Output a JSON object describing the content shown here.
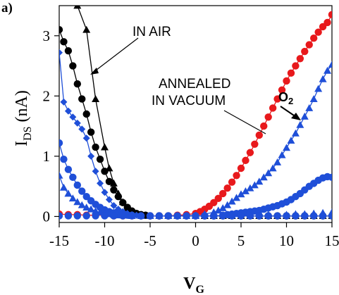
{
  "chart_data": {
    "type": "scatter",
    "panel_label": "a)",
    "xlabel": "V",
    "xlabel_sub": "G",
    "ylabel": "I",
    "ylabel_sub": "DS",
    "ylabel_unit": "(nA)",
    "xlim": [
      -15,
      15
    ],
    "ylim": [
      -0.1,
      3.5
    ],
    "xticks": [
      -15,
      -10,
      -5,
      0,
      5,
      10,
      15
    ],
    "yticks": [
      0,
      1,
      2,
      3
    ],
    "xtick_labels": [
      "-15",
      "-10",
      "-5",
      "0",
      "5",
      "10",
      "15"
    ],
    "ytick_labels": [
      "0",
      "1",
      "2",
      "3"
    ],
    "colors": {
      "air": "#000000",
      "vacuum": "#e8191c",
      "oxygen": "#1f4fd8"
    },
    "annotations": {
      "in_air": "IN AIR",
      "annealed_line1": "ANNEALED",
      "annealed_line2": "IN VACUUM",
      "o2": "O",
      "o2_sub": "2"
    },
    "series": [
      {
        "color": "black",
        "marker": "triangle",
        "line": true,
        "x": [
          -15,
          -14,
          -13,
          -12,
          -11,
          -10,
          -9.5,
          -9,
          -8.5,
          -8,
          -7.5,
          -7,
          -6.5,
          -6,
          -5.5,
          -5,
          -4,
          -3,
          -2,
          -1,
          0,
          1,
          2,
          3,
          4,
          5,
          6,
          7,
          8,
          9,
          10,
          11,
          12,
          13,
          14,
          15
        ],
        "y": [
          3.9,
          3.7,
          3.5,
          3.1,
          1.95,
          1.15,
          0.8,
          0.55,
          0.38,
          0.24,
          0.14,
          0.08,
          0.05,
          0.03,
          0.02,
          0.01,
          0.01,
          0.01,
          0.01,
          0.01,
          0.01,
          0.01,
          0.01,
          0.01,
          0.01,
          0.01,
          0.01,
          0.01,
          0.01,
          0.01,
          0.01,
          0.01,
          0.01,
          0.01,
          0.01,
          0.01
        ]
      },
      {
        "color": "black",
        "marker": "circle",
        "line": true,
        "x": [
          -15,
          -14.5,
          -14,
          -13.5,
          -13,
          -12.5,
          -12,
          -11.5,
          -11,
          -10.5,
          -10,
          -9.5,
          -9,
          -8.5,
          -8,
          -7.5,
          -7,
          -6.5,
          -6,
          -5.5,
          -5,
          -4,
          -3,
          -2,
          -1,
          0,
          1,
          2,
          3,
          4,
          5,
          6,
          7,
          8,
          9,
          10,
          11,
          12,
          13,
          14,
          15
        ],
        "y": [
          3.1,
          2.9,
          2.75,
          2.5,
          2.2,
          1.95,
          1.7,
          1.4,
          1.15,
          0.95,
          0.75,
          0.58,
          0.44,
          0.33,
          0.23,
          0.15,
          0.09,
          0.05,
          0.03,
          0.02,
          0.01,
          0.01,
          0.01,
          0.01,
          0.01,
          0.01,
          0.01,
          0.01,
          0.01,
          0.01,
          0.01,
          0.01,
          0.01,
          0.01,
          0.01,
          0.01,
          0.01,
          0.01,
          0.01,
          0.01,
          0.01
        ]
      },
      {
        "color": "red",
        "marker": "circle",
        "line": true,
        "x": [
          -15,
          -14,
          -13,
          -12,
          -11,
          -10,
          -9,
          -8,
          -7,
          -6,
          -5,
          -4,
          -3,
          -2,
          -1,
          0,
          0.5,
          1,
          1.5,
          2,
          2.5,
          3,
          3.5,
          4,
          4.5,
          5,
          5.5,
          6,
          6.5,
          7,
          7.5,
          8,
          8.5,
          9,
          9.5,
          10,
          10.5,
          11,
          11.5,
          12,
          12.5,
          13,
          13.5,
          14,
          14.5,
          15
        ],
        "y": [
          0.04,
          0.03,
          0.03,
          0.02,
          0.02,
          0.02,
          0.01,
          0.01,
          0.01,
          0.01,
          0.01,
          0.01,
          0.01,
          0.02,
          0.03,
          0.05,
          0.08,
          0.12,
          0.17,
          0.23,
          0.3,
          0.38,
          0.47,
          0.57,
          0.68,
          0.8,
          0.93,
          1.06,
          1.2,
          1.35,
          1.5,
          1.65,
          1.8,
          1.95,
          2.1,
          2.25,
          2.38,
          2.5,
          2.62,
          2.74,
          2.85,
          2.96,
          3.06,
          3.15,
          3.22,
          3.35
        ]
      },
      {
        "color": "blue",
        "marker": "diamond",
        "line": true,
        "x": [
          -15,
          -14.5,
          -14,
          -13.5,
          -13,
          -12.5,
          -12,
          -11.5,
          -11,
          -10.5,
          -10,
          -9.5,
          -9,
          -8.5,
          -8,
          -7.5,
          -7,
          -6.5,
          -6,
          -5,
          -4,
          -3,
          -2,
          -1,
          0,
          1,
          2,
          3,
          4,
          5,
          6,
          7,
          8,
          9,
          10,
          11,
          12,
          13,
          14,
          15
        ],
        "y": [
          2.72,
          1.9,
          1.75,
          1.65,
          1.55,
          1.45,
          1.3,
          1.0,
          0.75,
          0.55,
          0.4,
          0.28,
          0.18,
          0.12,
          0.08,
          0.05,
          0.03,
          0.02,
          0.02,
          0.01,
          0.01,
          0.01,
          0.01,
          0.01,
          0.01,
          0.01,
          0.01,
          0.01,
          0.01,
          0.01,
          0.01,
          0.01,
          0.01,
          0.01,
          0.01,
          0.01,
          0.01,
          0.01,
          0.01,
          0.01
        ]
      },
      {
        "color": "blue",
        "marker": "circle",
        "line": true,
        "x": [
          -15,
          -14.5,
          -14,
          -13.5,
          -13,
          -12.5,
          -12,
          -11.5,
          -11,
          -10.5,
          -10,
          -9.5,
          -9,
          -8.5,
          -8,
          -7.5,
          -7,
          -6,
          -5,
          -4,
          -3,
          -2,
          -1,
          0,
          1,
          2,
          3,
          3.5,
          4,
          4.5,
          5,
          5.5,
          6,
          6.5,
          7,
          7.5,
          8,
          8.5,
          9,
          9.5,
          10,
          10.5,
          11,
          11.5,
          12,
          12.5,
          13,
          13.5,
          14,
          14.5,
          15
        ],
        "y": [
          1.22,
          0.95,
          0.78,
          0.65,
          0.52,
          0.42,
          0.33,
          0.26,
          0.2,
          0.15,
          0.11,
          0.08,
          0.06,
          0.04,
          0.03,
          0.02,
          0.02,
          0.01,
          0.01,
          0.01,
          0.01,
          0.01,
          0.01,
          0.01,
          0.01,
          0.01,
          0.02,
          0.03,
          0.04,
          0.05,
          0.06,
          0.07,
          0.08,
          0.09,
          0.1,
          0.12,
          0.14,
          0.16,
          0.18,
          0.21,
          0.24,
          0.28,
          0.33,
          0.38,
          0.44,
          0.5,
          0.55,
          0.6,
          0.64,
          0.66,
          0.65
        ]
      },
      {
        "color": "blue",
        "marker": "triangle",
        "line": true,
        "x": [
          -15,
          -14.5,
          -14,
          -13.5,
          -13,
          -12.5,
          -12,
          -11.5,
          -11,
          -10.5,
          -10,
          -9.5,
          -9,
          -8.5,
          -8,
          -7,
          -6,
          -5,
          -4,
          -3,
          -2,
          -1,
          0,
          1,
          2,
          2.5,
          3,
          3.5,
          4,
          4.5,
          5,
          5.5,
          6,
          6.5,
          7,
          7.5,
          8,
          8.5,
          9,
          9.5,
          10,
          10.5,
          11,
          11.5,
          12,
          12.5,
          13,
          13.5,
          14,
          14.5,
          15
        ],
        "y": [
          0.68,
          0.48,
          0.38,
          0.3,
          0.24,
          0.19,
          0.15,
          0.12,
          0.09,
          0.07,
          0.05,
          0.04,
          0.03,
          0.02,
          0.02,
          0.01,
          0.01,
          0.01,
          0.01,
          0.01,
          0.01,
          0.01,
          0.02,
          0.04,
          0.07,
          0.1,
          0.14,
          0.19,
          0.25,
          0.31,
          0.37,
          0.42,
          0.47,
          0.52,
          0.58,
          0.65,
          0.72,
          0.8,
          0.9,
          1.02,
          1.14,
          1.26,
          1.38,
          1.52,
          1.66,
          1.8,
          1.95,
          2.12,
          2.28,
          2.42,
          2.52
        ]
      },
      {
        "color": "blue",
        "marker": "circle",
        "line": false,
        "x": [
          -15,
          -14,
          -13,
          -12,
          -11,
          -10,
          -9,
          -8,
          -7,
          -6,
          -5,
          -4,
          -3,
          -2,
          -1,
          0,
          1,
          2,
          3,
          4,
          5,
          6,
          7,
          8,
          9,
          10,
          11,
          12,
          13,
          14,
          15
        ],
        "y": [
          0.01,
          0.01,
          0.01,
          0.01,
          0.01,
          0.01,
          0.01,
          0.01,
          0.01,
          0.01,
          0.01,
          0.01,
          0.01,
          0.01,
          0.01,
          0.01,
          0.01,
          0.01,
          0.01,
          0.01,
          0.01,
          0.01,
          0.01,
          0.01,
          0.01,
          0.01,
          0.01,
          0.01,
          0.01,
          0.01,
          0.01
        ]
      },
      {
        "color": "blue",
        "marker": "triangle",
        "line": false,
        "x": [
          -6,
          -4,
          -2,
          0,
          2,
          4,
          6,
          8,
          10,
          11,
          12,
          13,
          14,
          15
        ],
        "y": [
          0.01,
          0.01,
          0.01,
          0.01,
          0.02,
          0.02,
          0.02,
          0.03,
          0.03,
          0.04,
          0.04,
          0.05,
          0.06,
          0.07
        ]
      }
    ]
  }
}
